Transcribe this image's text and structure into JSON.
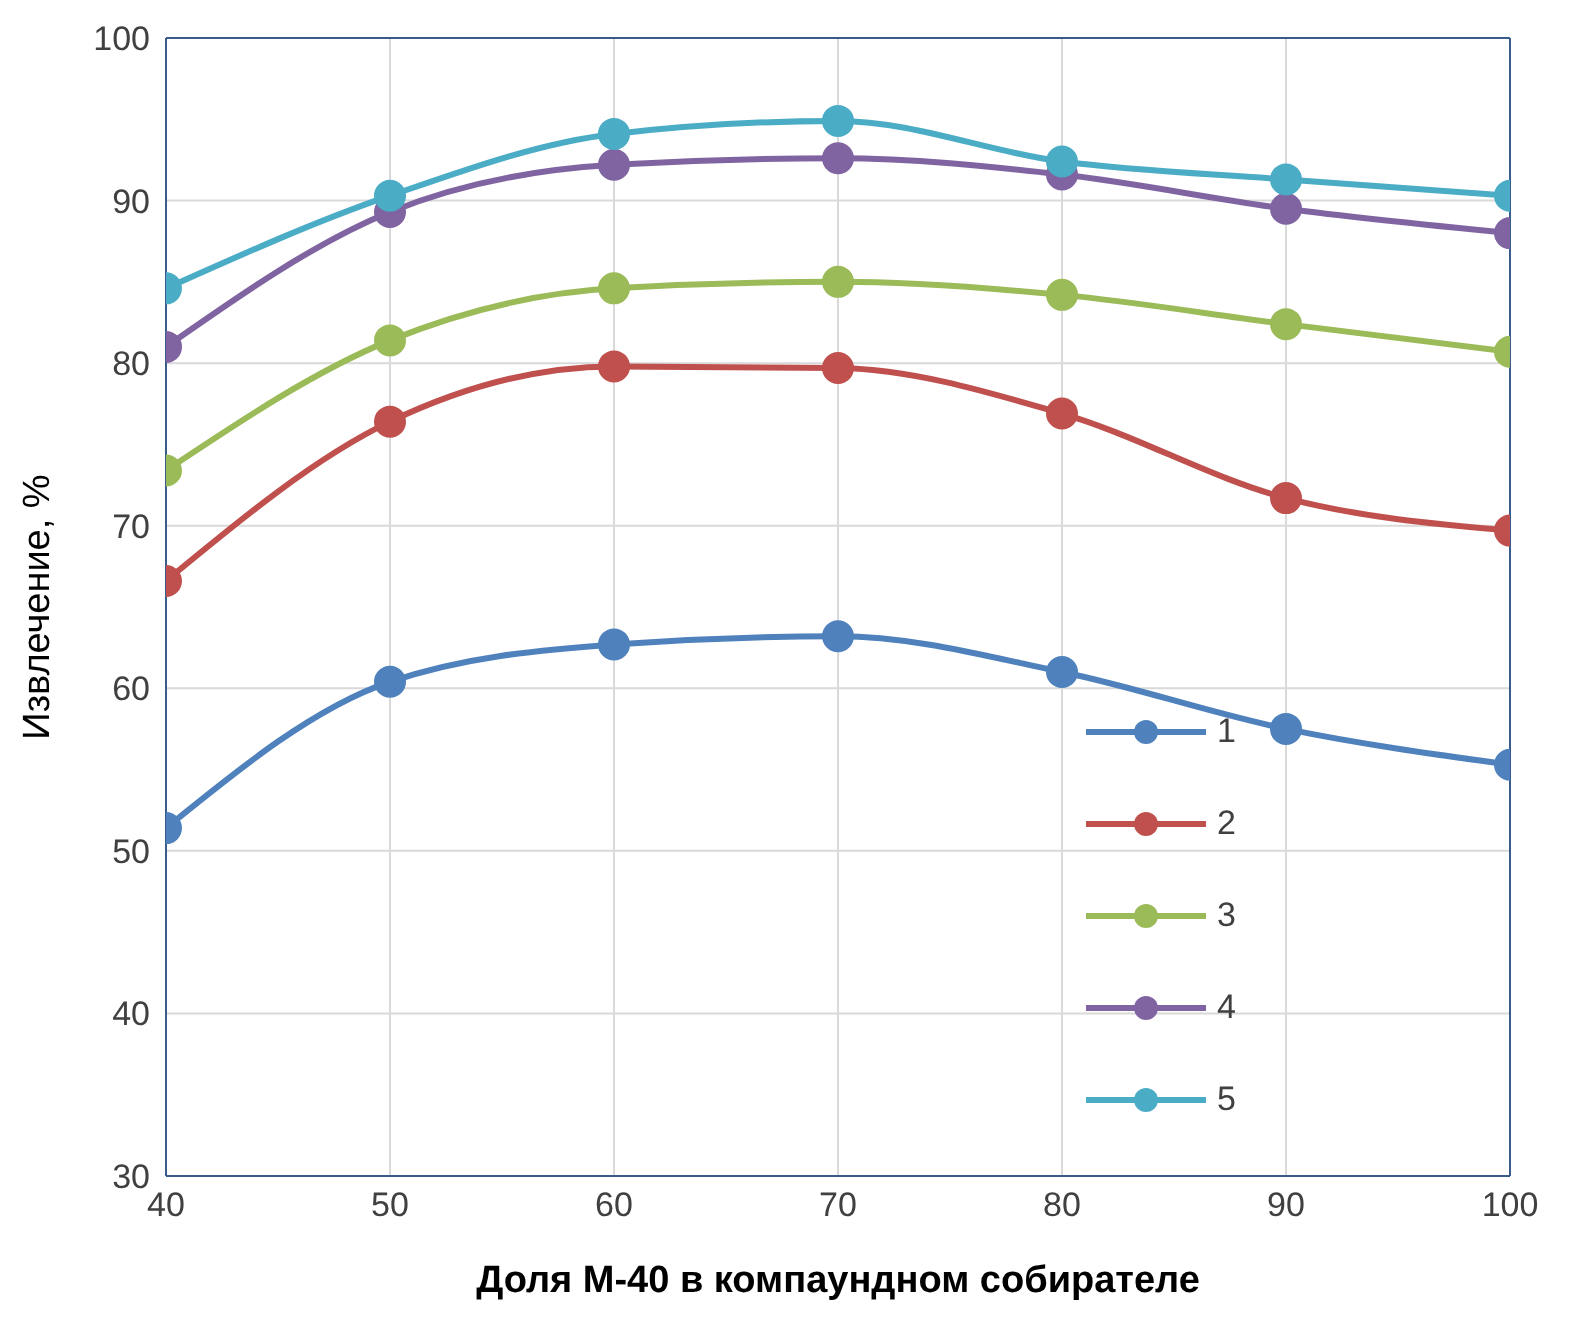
{
  "chart_data": {
    "type": "line",
    "xlabel": "Доля М-40 в компаундном собирателе",
    "ylabel": "Извлечение, %",
    "x": [
      40,
      50,
      60,
      70,
      80,
      90,
      100
    ],
    "series": [
      {
        "name": "1",
        "color": "#4f81bd",
        "values": [
          51.4,
          60.4,
          62.7,
          63.2,
          61.0,
          57.5,
          55.3
        ]
      },
      {
        "name": "2",
        "color": "#c0504d",
        "values": [
          66.6,
          76.4,
          79.8,
          79.7,
          76.9,
          71.7,
          69.7
        ]
      },
      {
        "name": "3",
        "color": "#9bbb59",
        "values": [
          73.4,
          81.4,
          84.6,
          85.0,
          84.2,
          82.4,
          80.7
        ]
      },
      {
        "name": "4",
        "color": "#8064a2",
        "values": [
          81.0,
          89.3,
          92.2,
          92.6,
          91.6,
          89.5,
          88.0
        ]
      },
      {
        "name": "5",
        "color": "#4bacc6",
        "values": [
          84.6,
          90.3,
          94.1,
          94.9,
          92.4,
          91.3,
          90.3
        ]
      }
    ],
    "xlim": [
      40,
      100
    ],
    "xticks": [
      40,
      50,
      60,
      70,
      80,
      90,
      100
    ],
    "ylim": [
      30,
      100
    ],
    "yticks": [
      30,
      40,
      50,
      60,
      70,
      80,
      90,
      100
    ],
    "grid": true,
    "legend": "bottom right",
    "marker": "circle",
    "line_style": "solid"
  }
}
